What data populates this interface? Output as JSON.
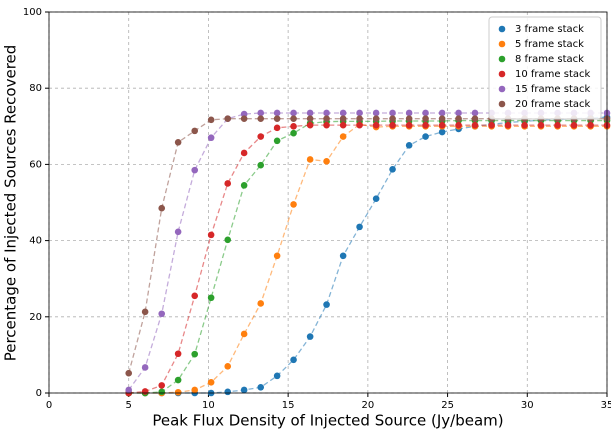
{
  "chart_data": {
    "type": "scatter",
    "xlabel": "Peak Flux Density of Injected Source (Jy/beam)",
    "ylabel": "Percentage of Injected Sources Recovered",
    "x": [
      5,
      6.03,
      7.07,
      8.1,
      9.14,
      10.17,
      11.21,
      12.24,
      13.28,
      14.31,
      15.34,
      16.38,
      17.41,
      18.45,
      19.48,
      20.52,
      21.55,
      22.59,
      23.62,
      24.66,
      25.69,
      26.72,
      27.76,
      28.79,
      29.83,
      30.86,
      31.9,
      32.93,
      33.97,
      35
    ],
    "series": [
      {
        "name": "3 frame stack",
        "color": "#1f77b4",
        "values": [
          0,
          0,
          0,
          0,
          0,
          0,
          0.3,
          0.8,
          1.5,
          4.5,
          8.7,
          14.8,
          23.2,
          36,
          43.6,
          51,
          58.7,
          65,
          67.3,
          68.5,
          69.3,
          70,
          70.5,
          71,
          71.3,
          71.6,
          71.8,
          72,
          72.2,
          72.4
        ]
      },
      {
        "name": "5 frame stack",
        "color": "#ff7f0e",
        "values": [
          0,
          0,
          0,
          0.2,
          0.8,
          2.8,
          7,
          15.5,
          23.5,
          36,
          49.5,
          61.3,
          60.8,
          67.3,
          70.5,
          69.8,
          70,
          70,
          70,
          70,
          70,
          70,
          70,
          70,
          70,
          70,
          70,
          70,
          70,
          70
        ]
      },
      {
        "name": "8 frame stack",
        "color": "#2ca02c",
        "values": [
          0,
          0,
          0.3,
          3.4,
          10.2,
          25,
          40.2,
          54.5,
          59.8,
          66.2,
          68.2,
          70.8,
          71.2,
          71.3,
          71.3,
          71.3,
          71.4,
          71.4,
          71.4,
          71.4,
          71.5,
          71.5,
          71.5,
          71.5,
          71.5,
          71.5,
          71.5,
          71.5,
          71.5,
          71.5
        ]
      },
      {
        "name": "10 frame stack",
        "color": "#d62728",
        "values": [
          0,
          0.4,
          2,
          10.3,
          25.5,
          41.5,
          55,
          63,
          67.3,
          69.6,
          70,
          70.3,
          70.3,
          70.3,
          70.3,
          70.3,
          70.3,
          70.3,
          70.3,
          70.3,
          70.3,
          70.3,
          70.3,
          70.3,
          70.3,
          70.3,
          70.3,
          70.3,
          70.3,
          70.3
        ]
      },
      {
        "name": "15 frame stack",
        "color": "#9467bd",
        "values": [
          0.8,
          6.7,
          20.8,
          42.3,
          58.5,
          67,
          72,
          73.2,
          73.5,
          73.5,
          73.5,
          73.5,
          73.5,
          73.5,
          73.5,
          73.5,
          73.5,
          73.5,
          73.5,
          73.5,
          73.5,
          73.5,
          73.5,
          73.5,
          73.5,
          73.5,
          73.5,
          73.5,
          73.5,
          73.5
        ]
      },
      {
        "name": "20 frame stack",
        "color": "#8c564b",
        "values": [
          5.2,
          21.3,
          48.5,
          65.8,
          68.8,
          71.7,
          72,
          72,
          72,
          72,
          72,
          72,
          72,
          72,
          72,
          72,
          72,
          72,
          72,
          72,
          72,
          72,
          72,
          72,
          72,
          72,
          72,
          72,
          72,
          72
        ]
      }
    ],
    "xlim": [
      0,
      35
    ],
    "xticks": [
      0,
      5,
      10,
      15,
      20,
      25,
      30,
      35
    ],
    "ylim": [
      0,
      100
    ],
    "yticks": [
      0,
      20,
      40,
      60,
      80,
      100
    ],
    "grid": true,
    "legend": "upper-right"
  }
}
